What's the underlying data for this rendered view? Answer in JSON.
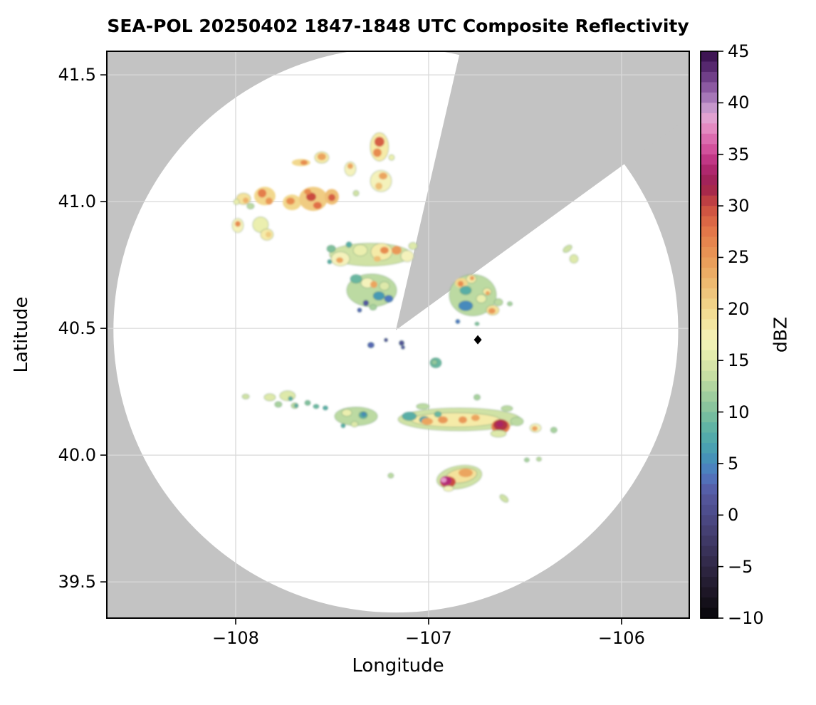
{
  "title": "SEA-POL 20250402 1847-1848 UTC Composite Reflectivity",
  "axes": {
    "xlabel": "Longitude",
    "ylabel": "Latitude",
    "xtick_labels": [
      "−108",
      "−107",
      "−106"
    ],
    "ytick_labels": [
      "41.5",
      "41.0",
      "40.5",
      "40.0",
      "39.5"
    ]
  },
  "colorbar_labels": {
    "label": "dBZ",
    "tick_labels": [
      "45",
      "40",
      "35",
      "30",
      "25",
      "20",
      "15",
      "10",
      "5",
      "0",
      "−5",
      "−10"
    ]
  },
  "chart_data": {
    "type": "heatmap",
    "title": "SEA-POL 20250402 1847-1848 UTC Composite Reflectivity",
    "xlabel": "Longitude",
    "ylabel": "Latitude",
    "xlim": [
      -108.668,
      -105.649
    ],
    "ylim": [
      39.357,
      41.593
    ],
    "xticks": [
      -108,
      -107,
      -106
    ],
    "yticks": [
      41.5,
      41.0,
      40.5,
      40.0,
      39.5
    ],
    "grid": true,
    "colorbar": {
      "label": "dBZ",
      "min": -10,
      "max": 45,
      "ticks": [
        45,
        40,
        35,
        30,
        25,
        20,
        15,
        10,
        5,
        0,
        -5,
        -10
      ],
      "band_step": 1,
      "colormap_name": "spectral-reflectivity",
      "stops": [
        [
          -10,
          "#060609"
        ],
        [
          -8,
          "#191320"
        ],
        [
          -6,
          "#282038"
        ],
        [
          -4,
          "#362e52"
        ],
        [
          -2,
          "#423c6c"
        ],
        [
          0,
          "#4c4a88"
        ],
        [
          2,
          "#55589f"
        ],
        [
          3,
          "#5566b2"
        ],
        [
          4,
          "#4f79c0"
        ],
        [
          5,
          "#468abc"
        ],
        [
          6,
          "#469ab4"
        ],
        [
          7,
          "#4da5ad"
        ],
        [
          8,
          "#59aea6"
        ],
        [
          9,
          "#69b7a1"
        ],
        [
          10,
          "#80c09c"
        ],
        [
          12,
          "#a8d19e"
        ],
        [
          14,
          "#d0e2a5"
        ],
        [
          16,
          "#ebefaf"
        ],
        [
          17,
          "#f4f2bb"
        ],
        [
          18,
          "#f5eba8"
        ],
        [
          20,
          "#f2d88d"
        ],
        [
          22,
          "#eebf76"
        ],
        [
          24,
          "#eba55f"
        ],
        [
          26,
          "#e78c50"
        ],
        [
          28,
          "#e17046"
        ],
        [
          30,
          "#ca4c41"
        ],
        [
          31,
          "#b13245"
        ],
        [
          32,
          "#9c2050"
        ],
        [
          34,
          "#b52a78"
        ],
        [
          35,
          "#cc4392"
        ],
        [
          36,
          "#d75ea5"
        ],
        [
          37,
          "#df7ab8"
        ],
        [
          38,
          "#e79aca"
        ],
        [
          39,
          "#daa8d5"
        ],
        [
          40,
          "#b286c0"
        ],
        [
          41,
          "#9a67ad"
        ],
        [
          42,
          "#7d4b94"
        ],
        [
          43,
          "#62327b"
        ],
        [
          44,
          "#491d61"
        ],
        [
          45,
          "#330d46"
        ]
      ]
    },
    "radar": {
      "center_lon": -107.17,
      "center_lat": 40.493,
      "radius_lat_deg": 1.114,
      "missing_sector_azimuth_deg": [
        13,
        54
      ]
    },
    "site_marker": {
      "lon": -106.745,
      "lat": 40.455,
      "shape": "diamond",
      "color": "#000000"
    },
    "colors": {
      "outside_scan": "#c3c3c3",
      "scan_area": "#ffffff",
      "grid": "#d9d9d9",
      "frame": "#000000",
      "echo_edge": "rgba(70,125,95,0.40)"
    },
    "echoes": [
      [
        -107.255,
        41.216,
        26,
        40,
        18
      ],
      [
        -107.255,
        41.236,
        14,
        14,
        29
      ],
      [
        -107.266,
        41.193,
        12,
        12,
        26
      ],
      [
        -107.192,
        41.174,
        8,
        8,
        16
      ],
      [
        -107.661,
        41.154,
        26,
        10,
        20
      ],
      [
        -107.646,
        41.154,
        10,
        7,
        26
      ],
      [
        -107.554,
        41.174,
        20,
        16,
        18
      ],
      [
        -107.554,
        41.177,
        12,
        10,
        24
      ],
      [
        -107.406,
        41.129,
        16,
        20,
        17
      ],
      [
        -107.406,
        41.14,
        8,
        8,
        24
      ],
      [
        -107.247,
        41.081,
        30,
        30,
        17
      ],
      [
        -107.236,
        41.101,
        12,
        10,
        24
      ],
      [
        -107.258,
        41.061,
        10,
        10,
        22
      ],
      [
        -107.959,
        41.011,
        20,
        16,
        19
      ],
      [
        -107.948,
        41.005,
        8,
        8,
        23
      ],
      [
        -107.996,
        40.999,
        8,
        8,
        16
      ],
      [
        -107.849,
        41.022,
        30,
        26,
        20
      ],
      [
        -107.863,
        41.033,
        12,
        12,
        27
      ],
      [
        -107.827,
        41.002,
        10,
        10,
        25
      ],
      [
        -107.708,
        40.997,
        26,
        22,
        20
      ],
      [
        -107.716,
        41.002,
        12,
        10,
        26
      ],
      [
        -107.598,
        41.011,
        40,
        34,
        21
      ],
      [
        -107.609,
        41.019,
        14,
        12,
        30
      ],
      [
        -107.576,
        40.985,
        12,
        10,
        28
      ],
      [
        -107.627,
        41.039,
        10,
        8,
        26
      ],
      [
        -107.502,
        41.019,
        20,
        22,
        22
      ],
      [
        -107.502,
        41.016,
        10,
        10,
        29
      ],
      [
        -107.376,
        41.033,
        8,
        8,
        14
      ],
      [
        -107.923,
        40.982,
        10,
        8,
        13
      ],
      [
        -107.989,
        40.906,
        16,
        20,
        17
      ],
      [
        -107.989,
        40.912,
        8,
        8,
        26
      ],
      [
        -107.871,
        40.909,
        22,
        22,
        16
      ],
      [
        -107.838,
        40.87,
        18,
        16,
        18
      ],
      [
        -107.83,
        40.87,
        8,
        8,
        21
      ],
      [
        -107.302,
        40.791,
        115,
        32,
        14
      ],
      [
        -107.457,
        40.774,
        26,
        20,
        17
      ],
      [
        -107.461,
        40.769,
        10,
        8,
        24
      ],
      [
        -107.505,
        40.814,
        12,
        10,
        10
      ],
      [
        -107.354,
        40.808,
        20,
        16,
        16
      ],
      [
        -107.244,
        40.802,
        30,
        24,
        18
      ],
      [
        -107.229,
        40.808,
        12,
        10,
        26
      ],
      [
        -107.166,
        40.808,
        14,
        12,
        25
      ],
      [
        -107.266,
        40.774,
        10,
        8,
        22
      ],
      [
        -107.111,
        40.785,
        18,
        16,
        17
      ],
      [
        -107.081,
        40.825,
        12,
        10,
        15
      ],
      [
        -107.413,
        40.83,
        8,
        8,
        8
      ],
      [
        -107.513,
        40.763,
        6,
        6,
        8
      ],
      [
        -107.295,
        40.65,
        70,
        46,
        13
      ],
      [
        -107.376,
        40.695,
        16,
        12,
        9
      ],
      [
        -107.317,
        40.679,
        18,
        14,
        17
      ],
      [
        -107.284,
        40.673,
        10,
        10,
        24
      ],
      [
        -107.229,
        40.667,
        14,
        12,
        15
      ],
      [
        -107.258,
        40.628,
        16,
        12,
        6
      ],
      [
        -107.207,
        40.617,
        12,
        10,
        4
      ],
      [
        -107.325,
        40.6,
        8,
        8,
        2
      ],
      [
        -107.288,
        40.583,
        10,
        8,
        12
      ],
      [
        -107.358,
        40.572,
        6,
        6,
        3
      ],
      [
        -106.771,
        40.631,
        66,
        58,
        13
      ],
      [
        -106.83,
        40.679,
        18,
        14,
        20
      ],
      [
        -106.834,
        40.676,
        8,
        8,
        26
      ],
      [
        -106.779,
        40.695,
        14,
        12,
        18
      ],
      [
        -106.775,
        40.698,
        6,
        6,
        25
      ],
      [
        -106.808,
        40.65,
        16,
        12,
        8
      ],
      [
        -106.808,
        40.589,
        20,
        14,
        5
      ],
      [
        -106.727,
        40.617,
        14,
        12,
        16
      ],
      [
        -106.697,
        40.645,
        12,
        10,
        18
      ],
      [
        -106.694,
        40.639,
        6,
        6,
        24
      ],
      [
        -106.668,
        40.572,
        18,
        14,
        19
      ],
      [
        -106.672,
        40.569,
        10,
        8,
        25
      ],
      [
        -106.638,
        40.603,
        12,
        10,
        13
      ],
      [
        -106.579,
        40.597,
        7,
        6,
        12
      ],
      [
        -106.849,
        40.527,
        6,
        6,
        4
      ],
      [
        -106.749,
        40.518,
        6,
        5,
        10
      ],
      [
        -106.28,
        40.814,
        14,
        8,
        14,
        -35
      ],
      [
        -106.247,
        40.774,
        12,
        12,
        15
      ],
      [
        -107.299,
        40.434,
        9,
        8,
        3
      ],
      [
        -107.221,
        40.454,
        5,
        5,
        1
      ],
      [
        -107.14,
        40.442,
        7,
        7,
        1
      ],
      [
        -107.133,
        40.425,
        5,
        5,
        2
      ],
      [
        -106.963,
        40.364,
        16,
        14,
        9
      ],
      [
        -106.97,
        40.366,
        8,
        7,
        11
      ],
      [
        -107.948,
        40.231,
        10,
        7,
        14
      ],
      [
        -107.823,
        40.228,
        16,
        10,
        15
      ],
      [
        -107.731,
        40.234,
        22,
        14,
        15
      ],
      [
        -107.716,
        40.223,
        6,
        6,
        8
      ],
      [
        -107.779,
        40.2,
        10,
        8,
        12
      ],
      [
        -107.694,
        40.195,
        10,
        8,
        13
      ],
      [
        -107.687,
        40.195,
        5,
        5,
        8
      ],
      [
        -107.627,
        40.206,
        8,
        7,
        10
      ],
      [
        -107.583,
        40.192,
        8,
        6,
        9
      ],
      [
        -107.535,
        40.186,
        7,
        6,
        8
      ],
      [
        -107.376,
        40.153,
        60,
        26,
        13
      ],
      [
        -107.424,
        40.167,
        14,
        10,
        16
      ],
      [
        -107.339,
        40.158,
        12,
        10,
        8
      ],
      [
        -107.336,
        40.161,
        6,
        6,
        5
      ],
      [
        -107.384,
        40.122,
        10,
        8,
        15
      ],
      [
        -107.443,
        40.116,
        6,
        6,
        8
      ],
      [
        -106.841,
        40.141,
        172,
        32,
        14
      ],
      [
        -106.86,
        40.139,
        125,
        20,
        18
      ],
      [
        -107.1,
        40.153,
        20,
        12,
        8
      ],
      [
        -107.022,
        40.139,
        14,
        10,
        7
      ],
      [
        -106.952,
        40.161,
        10,
        8,
        9
      ],
      [
        -107.007,
        40.133,
        16,
        10,
        24
      ],
      [
        -106.926,
        40.139,
        14,
        10,
        25
      ],
      [
        -106.823,
        40.139,
        12,
        10,
        25
      ],
      [
        -106.757,
        40.147,
        12,
        9,
        24
      ],
      [
        -106.627,
        40.113,
        26,
        20,
        27
      ],
      [
        -106.627,
        40.119,
        20,
        16,
        31
      ],
      [
        -106.631,
        40.122,
        10,
        8,
        33
      ],
      [
        -106.638,
        40.085,
        22,
        10,
        15
      ],
      [
        -106.594,
        40.184,
        16,
        8,
        13
      ],
      [
        -107.03,
        40.192,
        18,
        8,
        13
      ],
      [
        -106.542,
        40.133,
        18,
        12,
        13
      ],
      [
        -106.749,
        40.228,
        9,
        8,
        12
      ],
      [
        -106.446,
        40.107,
        16,
        12,
        17
      ],
      [
        -106.45,
        40.105,
        8,
        7,
        24
      ],
      [
        -106.351,
        40.099,
        9,
        8,
        12
      ],
      [
        -106.841,
        39.913,
        64,
        32,
        14,
        -10
      ],
      [
        -106.83,
        39.919,
        44,
        20,
        19,
        -10
      ],
      [
        -106.808,
        39.93,
        20,
        12,
        24
      ],
      [
        -106.9,
        39.894,
        22,
        16,
        30
      ],
      [
        -106.911,
        39.899,
        16,
        13,
        34
      ],
      [
        -106.922,
        39.902,
        8,
        7,
        38
      ],
      [
        -106.897,
        39.868,
        14,
        8,
        17
      ],
      [
        -107.196,
        39.919,
        8,
        7,
        13
      ],
      [
        -106.491,
        39.981,
        7,
        6,
        12
      ],
      [
        -106.428,
        39.984,
        7,
        6,
        13
      ],
      [
        -106.609,
        39.829,
        14,
        8,
        14,
        40
      ]
    ]
  }
}
